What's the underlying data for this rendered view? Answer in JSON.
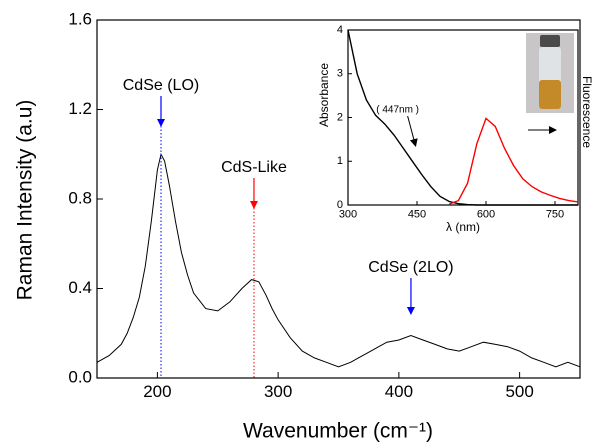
{
  "chart_data": [
    {
      "type": "line",
      "x_label": "Wavenumber (cm⁻¹)",
      "y_label": "Raman Intensity (a.u)",
      "xlim": [
        150,
        550
      ],
      "xticks": [
        200,
        300,
        400,
        500
      ],
      "ylim": [
        0,
        1.6
      ],
      "yticks": [
        {
          "value": 0,
          "label": "0.0"
        },
        0.4,
        0.8,
        1.2,
        1.6
      ],
      "x": [
        150,
        160,
        170,
        175,
        180,
        185,
        190,
        195,
        200,
        203,
        206,
        210,
        215,
        220,
        225,
        230,
        240,
        250,
        260,
        270,
        278,
        284,
        290,
        295,
        300,
        310,
        320,
        330,
        340,
        350,
        360,
        370,
        380,
        390,
        400,
        410,
        420,
        430,
        440,
        450,
        460,
        470,
        480,
        490,
        500,
        510,
        520,
        530,
        540,
        550
      ],
      "series": [
        {
          "color": "#000000",
          "values": [
            0.07,
            0.1,
            0.15,
            0.2,
            0.27,
            0.36,
            0.5,
            0.7,
            0.93,
            1.0,
            0.97,
            0.86,
            0.7,
            0.56,
            0.46,
            0.38,
            0.31,
            0.3,
            0.34,
            0.4,
            0.44,
            0.43,
            0.37,
            0.31,
            0.26,
            0.18,
            0.12,
            0.09,
            0.07,
            0.05,
            0.07,
            0.1,
            0.13,
            0.16,
            0.17,
            0.19,
            0.17,
            0.15,
            0.13,
            0.12,
            0.14,
            0.16,
            0.15,
            0.14,
            0.12,
            0.09,
            0.07,
            0.05,
            0.07,
            0.05
          ]
        }
      ],
      "annotations": [
        {
          "text": "CdSe (LO)",
          "x": 203,
          "color": "#0000ff"
        },
        {
          "text": "CdS-Like",
          "x": 280,
          "color": "#ff0000"
        },
        {
          "text": "CdSe (2LO)",
          "x": 410,
          "color": "#0000ff"
        }
      ]
    },
    {
      "type": "line",
      "x_label": "λ (nm)",
      "y_label": "Absorbance",
      "y2_label": "Fluorescence",
      "xlim": [
        300,
        800
      ],
      "xticks": [
        300,
        450,
        600,
        750
      ],
      "ylim": [
        0,
        4
      ],
      "yticks": [
        0,
        1,
        2,
        3,
        4
      ],
      "x": [
        300,
        320,
        340,
        360,
        380,
        400,
        420,
        440,
        460,
        480,
        500,
        520,
        540,
        560,
        580,
        600,
        620,
        640,
        660,
        680,
        700,
        720,
        740,
        760,
        780,
        800
      ],
      "series": [
        {
          "color": "#000000",
          "values": [
            4.0,
            3.0,
            2.4,
            2.05,
            1.85,
            1.6,
            1.3,
            1.0,
            0.7,
            0.42,
            0.2,
            0.08,
            0.03,
            0.01,
            0,
            0,
            0,
            0,
            0,
            0,
            0,
            0,
            0,
            0,
            0,
            0
          ]
        },
        {
          "color": "#ff0000",
          "values": [
            null,
            null,
            null,
            null,
            null,
            null,
            null,
            null,
            null,
            null,
            null,
            0.02,
            0.1,
            0.5,
            1.4,
            1.98,
            1.8,
            1.3,
            0.9,
            0.6,
            0.42,
            0.3,
            0.22,
            0.15,
            0.1,
            0.07
          ]
        }
      ],
      "annotations": [
        {
          "text": "( 447nm )",
          "x": 447,
          "color": "#000000"
        }
      ]
    }
  ]
}
